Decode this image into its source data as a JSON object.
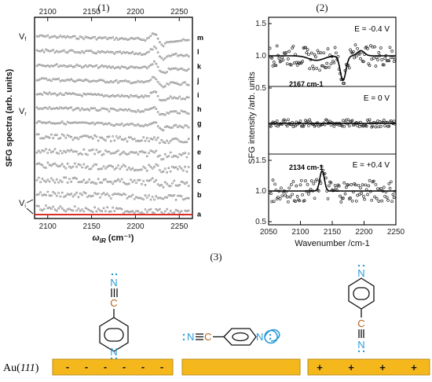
{
  "chart_data": [
    {
      "panel": "(1)",
      "type": "scatter",
      "xlabel": "ωIR (cm⁻¹)",
      "xlabel_main": "ω",
      "xlabel_sub": "IR",
      "xlabel_unit": " (cm⁻¹)",
      "ylabel": "SFG spectra (arb. units)",
      "xlim": [
        2085,
        2265
      ],
      "xticks": [
        2100,
        2150,
        2200,
        2250
      ],
      "y_markers": [
        {
          "label": "Vf",
          "main": "V",
          "sub": "f"
        },
        {
          "label": "Vr",
          "main": "V",
          "sub": "r"
        },
        {
          "label": "Vi",
          "main": "V",
          "sub": "i"
        }
      ],
      "spectra": [
        "m",
        "l",
        "k",
        "j",
        "i",
        "h",
        "g",
        "f",
        "e",
        "d",
        "c",
        "b",
        "a"
      ],
      "colors": {
        "points": "#8f8f8f",
        "baseline": "#d9302a"
      }
    },
    {
      "panel": "(2)",
      "type": "line",
      "xlabel": "Wavenumber /cm-1",
      "ylabel": "SFG intensity /arb. units",
      "xlim": [
        2050,
        2250
      ],
      "xticks": [
        2050,
        2100,
        2150,
        2200,
        2250
      ],
      "yticks_top": [
        "1.5",
        "1.0",
        "0.5"
      ],
      "yticks_bottom": [
        "1.5",
        "1.0",
        "0.5"
      ],
      "series": [
        {
          "name": "E = -0.4 V",
          "peak_label": "2167 cm-1",
          "peak_position": 2167,
          "feature": "dip",
          "baseline": 1.0,
          "extremum": 0.62
        },
        {
          "name": "E = 0 V",
          "feature": "flat",
          "baseline": 1.0
        },
        {
          "name": "E = +0.4 V",
          "peak_label": "2134 cm-1",
          "peak_position": 2134,
          "feature": "peak",
          "baseline": 1.0,
          "extremum": 1.33
        }
      ]
    }
  ],
  "panel3": {
    "title": "(3)",
    "au_label": "Au(111)",
    "au_label_pre": "Au(",
    "au_label_index": "111",
    "au_label_post": ")",
    "left_charges": [
      "-",
      "-",
      "-",
      "-",
      "-",
      "-"
    ],
    "right_charges": [
      "+",
      "+",
      "+",
      "+"
    ],
    "atoms": {
      "N": "N",
      "C": "C"
    },
    "colors": {
      "electrode": "#f5b81c",
      "electrode_border": "#b98d10",
      "nitrogen": "#2a9bd8",
      "carbon": "#b4641a"
    }
  }
}
